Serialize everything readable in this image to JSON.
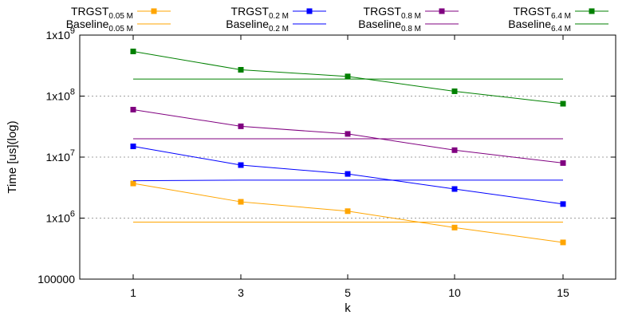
{
  "chart_data": {
    "type": "line",
    "y_scale": "log",
    "ylim": [
      100000,
      1000000000
    ],
    "ylabel": "Time [us](log)",
    "xlabel": "k",
    "categories": [
      "1",
      "3",
      "5",
      "10",
      "15"
    ],
    "yticks": [
      {
        "value": 100000,
        "label": "100000",
        "exp": ""
      },
      {
        "value": 1000000,
        "label": "1x10",
        "exp": "6"
      },
      {
        "value": 10000000,
        "label": "1x10",
        "exp": "7"
      },
      {
        "value": 100000000,
        "label": "1x10",
        "exp": "8"
      },
      {
        "value": 1000000000,
        "label": "1x10",
        "exp": "9"
      }
    ],
    "grid": "horizontal dotted",
    "legend_position": "top",
    "series": [
      {
        "name": "TRGST",
        "sub": "0.05 M",
        "kind": "trgst",
        "color": "#ffa500",
        "values": [
          3700000,
          1850000,
          1300000,
          700000,
          400000
        ]
      },
      {
        "name": "Baseline",
        "sub": "0.05 M",
        "kind": "baseline",
        "color": "#ffa500",
        "values": [
          860000,
          860000,
          860000,
          860000,
          860000
        ]
      },
      {
        "name": "TRGST",
        "sub": "0.2 M",
        "kind": "trgst",
        "color": "#0000ff",
        "values": [
          15000000,
          7400000,
          5300000,
          3000000,
          1700000
        ]
      },
      {
        "name": "Baseline",
        "sub": "0.2 M",
        "kind": "baseline",
        "color": "#0000ff",
        "values": [
          4100000,
          4200000,
          4200000,
          4200000,
          4200000
        ]
      },
      {
        "name": "TRGST",
        "sub": "0.8 M",
        "kind": "trgst",
        "color": "#800080",
        "values": [
          60000000,
          32000000,
          24000000,
          13000000,
          8000000
        ]
      },
      {
        "name": "Baseline",
        "sub": "0.8 M",
        "kind": "baseline",
        "color": "#800080",
        "values": [
          20000000,
          20000000,
          20000000,
          20000000,
          20000000
        ]
      },
      {
        "name": "TRGST",
        "sub": "6.4 M",
        "kind": "trgst",
        "color": "#008000",
        "values": [
          540000000,
          270000000,
          210000000,
          120000000,
          75000000
        ]
      },
      {
        "name": "Baseline",
        "sub": "6.4 M",
        "kind": "baseline",
        "color": "#008000",
        "values": [
          190000000,
          190000000,
          190000000,
          190000000,
          190000000
        ]
      }
    ]
  }
}
